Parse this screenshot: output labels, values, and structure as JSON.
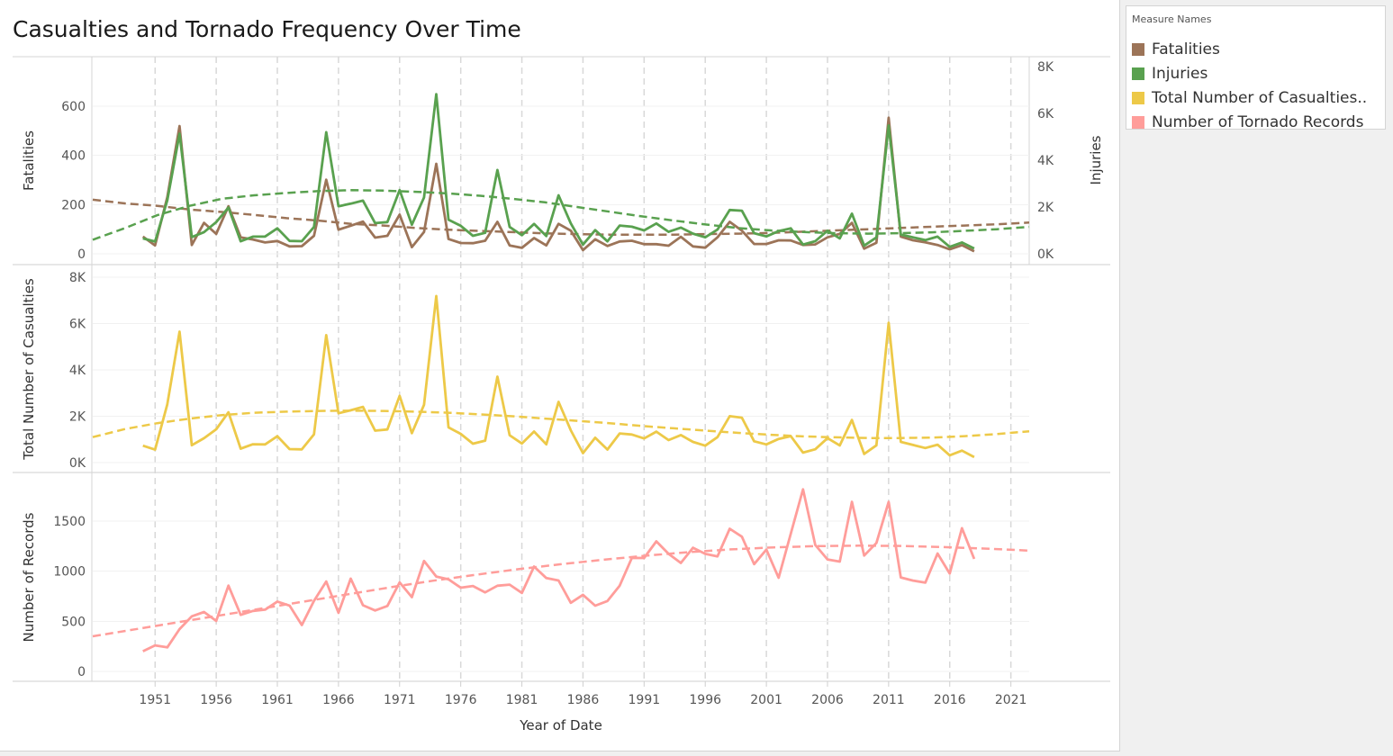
{
  "title": "Casualties and Tornado Frequency Over Time",
  "legend": {
    "title": "Measure Names",
    "items": [
      {
        "label": "Fatalities",
        "color": "#9c7458"
      },
      {
        "label": "Injuries",
        "color": "#59a14f"
      },
      {
        "label": "Total Number of Casualties..",
        "color": "#edc948"
      },
      {
        "label": "Number of Tornado Records",
        "color": "#ff9d9a"
      }
    ]
  },
  "chart_data": {
    "type": "line",
    "xlabel": "Year of Date",
    "x_ticks": [
      1951,
      1956,
      1961,
      1966,
      1971,
      1976,
      1981,
      1986,
      1991,
      1996,
      2001,
      2006,
      2011,
      2016,
      2021
    ],
    "x": [
      1950,
      1951,
      1952,
      1953,
      1954,
      1955,
      1956,
      1957,
      1958,
      1959,
      1960,
      1961,
      1962,
      1963,
      1964,
      1965,
      1966,
      1967,
      1968,
      1969,
      1970,
      1971,
      1972,
      1973,
      1974,
      1975,
      1976,
      1977,
      1978,
      1979,
      1980,
      1981,
      1982,
      1983,
      1984,
      1985,
      1986,
      1987,
      1988,
      1989,
      1990,
      1991,
      1992,
      1993,
      1994,
      1995,
      1996,
      1997,
      1998,
      1999,
      2000,
      2001,
      2002,
      2003,
      2004,
      2005,
      2006,
      2007,
      2008,
      2009,
      2010,
      2011,
      2012,
      2013,
      2014,
      2015,
      2016,
      2017,
      2018
    ],
    "panels": [
      {
        "ylabel_left": "Fatalities",
        "ylabel_right": "Injuries",
        "left_ticks": [
          "0",
          "200",
          "400",
          "600"
        ],
        "right_ticks": [
          "0K",
          "2K",
          "4K",
          "6K",
          "8K"
        ],
        "series": [
          {
            "name": "Fatalities",
            "axis": "left",
            "color": "#9c7458",
            "values": [
              70,
              34,
              230,
              519,
              36,
              126,
              81,
              193,
              67,
              58,
              46,
              52,
              30,
              31,
              73,
              301,
              98,
              114,
              131,
              66,
              73,
              159,
              27,
              89,
              366,
              60,
              44,
              43,
              53,
              130,
              34,
              24,
              64,
              34,
              122,
              94,
              15,
              59,
              32,
              50,
              53,
              39,
              39,
              33,
              69,
              30,
              25,
              67,
              130,
              94,
              40,
              40,
              55,
              54,
              36,
              38,
              67,
              81,
              126,
              21,
              45,
              553,
              70,
              55,
              47,
              36,
              18,
              35,
              10
            ],
            "trend": [
              220,
              205,
              195,
              180,
              170,
              158,
              145,
              135,
              122,
              115,
              105,
              98,
              93,
              88,
              83,
              80,
              78,
              78,
              78,
              80,
              82,
              85,
              90,
              95,
              100,
              105,
              110,
              115,
              120,
              127
            ]
          },
          {
            "name": "Injuries",
            "axis": "right",
            "color": "#59a14f",
            "values": [
              659,
              524,
              2286,
              5131,
              715,
              926,
              1355,
              1976,
              535,
              734,
              737,
              1087,
              551,
              538,
              1148,
              5197,
              2030,
              2144,
              2272,
              1311,
              1355,
              2723,
              1242,
              2406,
              6824,
              1457,
              1195,
              771,
              895,
              3580,
              1148,
              798,
              1276,
              756,
              2499,
              1299,
              392,
              1013,
              531,
              1207,
              1158,
              1000,
              1297,
              937,
              1120,
              862,
              705,
              1033,
              1874,
              1842,
              882,
              743,
              968,
              1087,
              396,
              537,
              990,
              659,
              1714,
              351,
              700,
              5483,
              822,
              705,
              584,
              735,
              295,
              483,
              226
            ],
            "trend": [
              600,
              1100,
              1650,
              2050,
              2350,
              2500,
              2600,
              2680,
              2720,
              2700,
              2650,
              2580,
              2480,
              2350,
              2200,
              2000,
              1800,
              1600,
              1420,
              1250,
              1100,
              1000,
              930,
              880,
              860,
              880,
              920,
              980,
              1050,
              1150
            ]
          }
        ]
      },
      {
        "ylabel_left": "Total Number of Casualties",
        "left_ticks": [
          "0K",
          "2K",
          "4K",
          "6K",
          "8K"
        ],
        "series": [
          {
            "name": "Total Number of Casualties",
            "axis": "left",
            "color": "#edc948",
            "values": [
              729,
              558,
              2516,
              5650,
              751,
              1052,
              1436,
              2169,
              602,
              792,
              783,
              1139,
              581,
              569,
              1221,
              5498,
              2128,
              2258,
              2403,
              1377,
              1428,
              2882,
              1269,
              2495,
              7190,
              1517,
              1239,
              814,
              948,
              3710,
              1182,
              822,
              1340,
              790,
              2621,
              1393,
              407,
              1072,
              563,
              1257,
              1211,
              1039,
              1336,
              970,
              1189,
              892,
              730,
              1100,
              2004,
              1936,
              922,
              783,
              1023,
              1141,
              432,
              575,
              1057,
              740,
              1840,
              372,
              745,
              6036,
              892,
              760,
              631,
              771,
              313,
              518,
              236
            ],
            "trend": [
              1100,
              1450,
              1700,
              1900,
              2050,
              2150,
              2200,
              2230,
              2240,
              2230,
              2200,
              2150,
              2080,
              2000,
              1900,
              1800,
              1700,
              1580,
              1480,
              1380,
              1280,
              1200,
              1130,
              1090,
              1060,
              1060,
              1080,
              1140,
              1230,
              1350
            ]
          }
        ]
      },
      {
        "ylabel_left": "Number of Records",
        "left_ticks": [
          "0",
          "500",
          "1000",
          "1500"
        ],
        "series": [
          {
            "name": "Number of Tornado Records",
            "axis": "left",
            "color": "#ff9d9a",
            "values": [
              201,
              260,
              240,
              422,
              550,
              593,
              504,
              856,
              564,
              604,
              616,
              697,
              657,
              463,
              704,
              897,
              585,
              926,
              660,
              608,
              653,
              888,
              741,
              1102,
              947,
              919,
              835,
              852,
              789,
              855,
              866,
              783,
              1046,
              931,
              907,
              684,
              764,
              656,
              702,
              856,
              1133,
              1132,
              1298,
              1173,
              1082,
              1234,
              1173,
              1148,
              1424,
              1345,
              1071,
              1215,
              934,
              1374,
              1817,
              1262,
              1117,
              1096,
              1692,
              1156,
              1282,
              1691,
              938,
              906,
              886,
              1177,
              976,
              1429,
              1123
            ],
            "trend": [
              350,
              420,
              490,
              560,
              630,
              700,
              770,
              840,
              905,
              965,
              1020,
              1070,
              1115,
              1155,
              1190,
              1218,
              1238,
              1250,
              1255,
              1252,
              1240,
              1225,
              1205
            ]
          }
        ]
      }
    ],
    "legend_placement": "right",
    "grid": "vertical dashed reference lines at x ticks"
  }
}
